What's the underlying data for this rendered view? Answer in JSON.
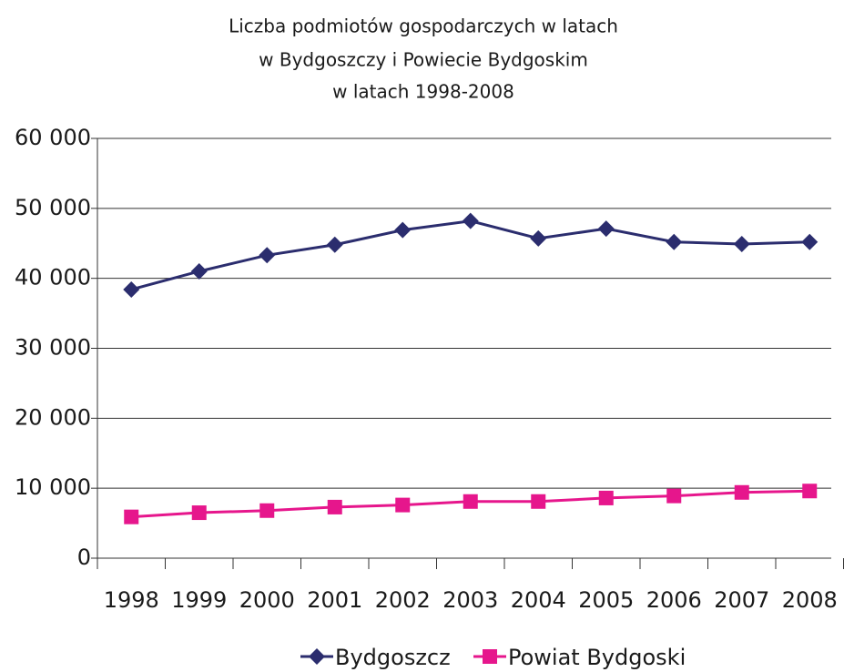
{
  "chart_data": {
    "type": "line",
    "title": [
      "Liczba podmiotów gospodarczych w latach",
      "w Bydgoszczy i Powiecie Bydgoskim",
      "w latach 1998-2008"
    ],
    "categories": [
      "1998",
      "1999",
      "2000",
      "2001",
      "2002",
      "2003",
      "2004",
      "2005",
      "2006",
      "2007",
      "2008"
    ],
    "series": [
      {
        "name": "Bydgoszcz",
        "color": "#2b2d6e",
        "marker": "diamond",
        "values": [
          38400,
          41000,
          43300,
          44800,
          46900,
          48200,
          45700,
          47100,
          45200,
          44900,
          45200
        ]
      },
      {
        "name": "Powiat Bydgoski",
        "color": "#e6168c",
        "marker": "square",
        "values": [
          5900,
          6500,
          6800,
          7300,
          7600,
          8100,
          8100,
          8600,
          8900,
          9400,
          9600
        ]
      }
    ],
    "ylim": [
      0,
      60000
    ],
    "yticks": [
      0,
      {
        "value": 10000,
        "label": "10 000"
      },
      {
        "value": 20000,
        "label": "20 000"
      },
      {
        "value": 30000,
        "label": "30 000"
      },
      {
        "value": 40000,
        "label": "40 000"
      },
      {
        "value": 50000,
        "label": "50 000"
      },
      {
        "value": 60000,
        "label": "60 000"
      }
    ],
    "grid": true,
    "legend": "bottom"
  }
}
